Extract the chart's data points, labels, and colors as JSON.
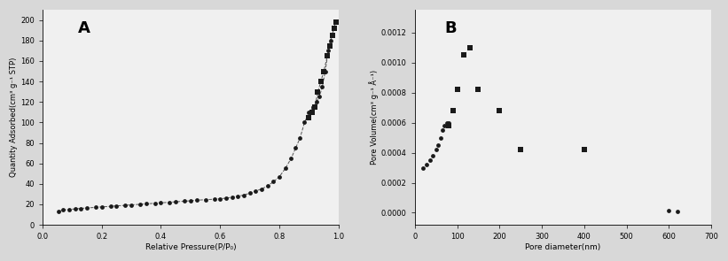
{
  "A": {
    "adsorption_x": [
      0.055,
      0.07,
      0.09,
      0.11,
      0.13,
      0.15,
      0.18,
      0.2,
      0.23,
      0.25,
      0.28,
      0.3,
      0.33,
      0.35,
      0.38,
      0.4,
      0.43,
      0.45,
      0.48,
      0.5,
      0.52,
      0.55,
      0.58,
      0.6,
      0.62,
      0.64,
      0.66,
      0.68,
      0.7,
      0.72,
      0.74,
      0.76,
      0.78,
      0.8,
      0.82,
      0.84,
      0.855,
      0.87,
      0.885,
      0.9,
      0.915,
      0.925,
      0.935,
      0.945,
      0.955,
      0.965,
      0.972,
      0.978,
      0.984,
      0.99
    ],
    "adsorption_y": [
      13,
      14.5,
      15,
      15.5,
      16,
      16.5,
      17,
      17.5,
      18,
      18.5,
      19,
      19.5,
      20,
      20.5,
      21,
      21.5,
      22,
      22.5,
      23,
      23.5,
      24,
      24.5,
      25,
      25.5,
      26,
      27,
      28,
      29,
      31,
      33,
      35,
      38,
      42,
      47,
      55,
      65,
      75,
      85,
      100,
      110,
      115,
      120,
      125,
      135,
      150,
      170,
      180,
      185,
      192,
      198
    ],
    "desorption_x": [
      0.99,
      0.984,
      0.978,
      0.97,
      0.962,
      0.95,
      0.94,
      0.93,
      0.92,
      0.91,
      0.9
    ],
    "desorption_y": [
      198,
      192,
      185,
      175,
      165,
      150,
      140,
      130,
      115,
      110,
      105
    ],
    "xlabel": "Relative Pressure(P/P₀)",
    "ylabel": "Quantity Adsorbed(cm³ g⁻¹ STP)",
    "label": "A",
    "xlim": [
      0.0,
      1.0
    ],
    "ylim": [
      0,
      210
    ],
    "xticks": [
      0.0,
      0.2,
      0.4,
      0.6,
      0.8,
      1.0
    ],
    "yticks": [
      0,
      20,
      40,
      60,
      80,
      100,
      120,
      140,
      160,
      180,
      200
    ]
  },
  "B": {
    "x_sq": [
      80,
      90,
      100,
      115,
      130,
      150,
      200,
      250,
      400
    ],
    "y_sq": [
      0.00058,
      0.00068,
      0.00082,
      0.00105,
      0.0011,
      0.00082,
      0.00068,
      0.00042,
      0.00042
    ],
    "x_ci": [
      20,
      28,
      35,
      42,
      50,
      55,
      60,
      65,
      70,
      75,
      80,
      600,
      620
    ],
    "y_ci": [
      0.0003,
      0.00032,
      0.00035,
      0.00038,
      0.00042,
      0.00045,
      0.0005,
      0.00055,
      0.00058,
      0.0006,
      0.0006,
      1.5e-05,
      8e-06
    ],
    "xlabel": "Pore diameter(nm)",
    "ylabel": "Pore Volume(cm³ g⁻¹ Å⁻¹)",
    "label": "B",
    "xlim": [
      0,
      700
    ],
    "ylim": [
      -8e-05,
      0.00135
    ],
    "xticks": [
      0,
      100,
      200,
      300,
      400,
      500,
      600,
      700
    ],
    "yticks": [
      0.0,
      0.0002,
      0.0004,
      0.0006,
      0.0008,
      0.001,
      0.0012
    ]
  },
  "marker_color": "#1a1a1a",
  "line_color": "#555555",
  "bg_color": "#f0f0f0",
  "fig_bg": "#d8d8d8"
}
